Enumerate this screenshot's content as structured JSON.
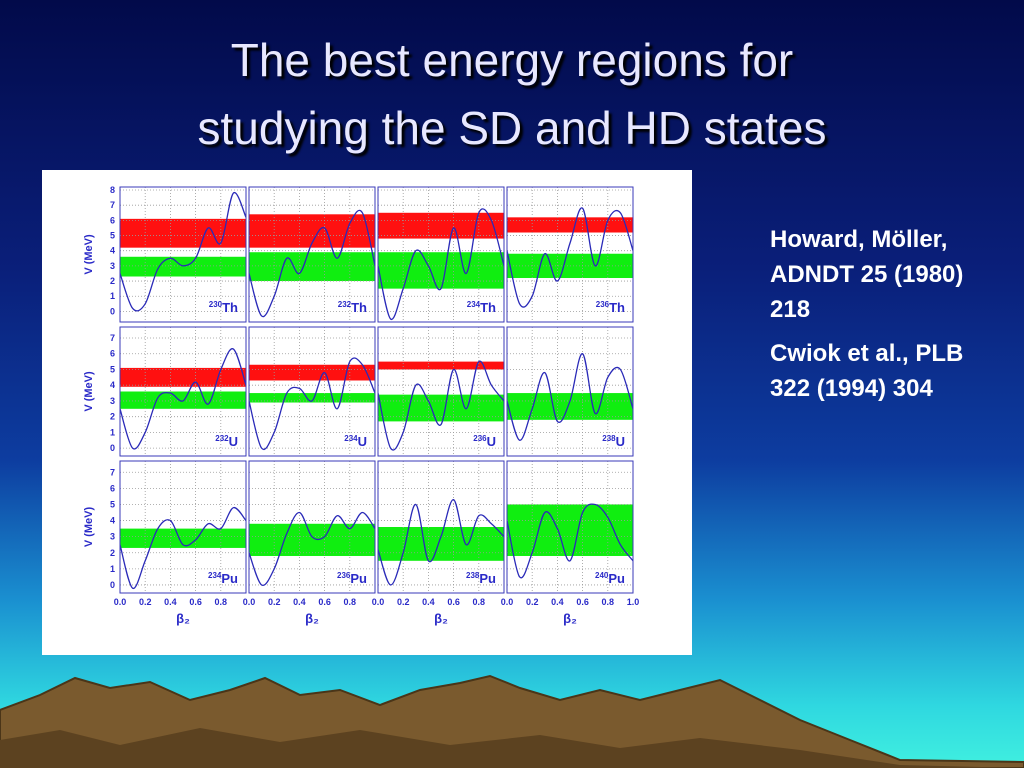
{
  "title": [
    "The best energy regions for",
    "studying the SD and HD states"
  ],
  "notes": [
    "Howard, Möller, ADNDT 25 (1980) 218",
    "Cwiok et al., PLB 322 (1994) 304"
  ],
  "figure": {
    "ylabel": "V (MeV)",
    "xlabel": "β₂",
    "xlim": [
      0,
      1
    ],
    "x": [
      0,
      0.1,
      0.2,
      0.3,
      0.4,
      0.5,
      0.6,
      0.7,
      0.8,
      0.9,
      1.0
    ],
    "columns": [
      {
        "xticks": [
          {
            "value": 0,
            "label": "0.0"
          },
          0.2,
          0.4,
          0.6,
          0.8
        ]
      },
      {
        "xticks": [
          {
            "value": 0,
            "label": "0.0"
          },
          0.2,
          0.4,
          0.6,
          0.8
        ]
      },
      {
        "xticks": [
          {
            "value": 0,
            "label": "0.0"
          },
          0.2,
          0.4,
          0.6,
          0.8
        ]
      },
      {
        "xticks": [
          {
            "value": 0,
            "label": "0.0"
          },
          0.2,
          0.4,
          0.6,
          0.8,
          {
            "value": 1,
            "label": "1.0"
          }
        ]
      }
    ],
    "rows": [
      {
        "ylim": [
          -0.7,
          8.2
        ],
        "yticks": [
          0,
          1,
          2,
          3,
          4,
          5,
          6,
          7,
          8
        ],
        "panels": [
          {
            "mass": "230",
            "element": "Th",
            "red": [
              4.2,
              6.1
            ],
            "green": [
              2.3,
              3.6
            ],
            "values": [
              2.5,
              0.2,
              0.5,
              2.8,
              3.5,
              3.0,
              3.5,
              5.5,
              4.5,
              7.8,
              6.2
            ]
          },
          {
            "mass": "232",
            "element": "Th",
            "red": [
              4.2,
              6.4
            ],
            "green": [
              2.0,
              3.9
            ],
            "values": [
              2.5,
              -0.3,
              1.0,
              3.5,
              2.5,
              4.5,
              5.5,
              3.5,
              5.8,
              6.5,
              3.0
            ]
          },
          {
            "mass": "234",
            "element": "Th",
            "red": [
              4.8,
              6.5
            ],
            "green": [
              1.5,
              3.9
            ],
            "values": [
              3,
              -0.5,
              1.5,
              4,
              3,
              1.5,
              5.5,
              2.5,
              6.5,
              6,
              3
            ]
          },
          {
            "mass": "236",
            "element": "Th",
            "red": [
              5.2,
              6.2
            ],
            "green": [
              2.2,
              3.8
            ],
            "values": [
              4,
              0.5,
              1,
              3.8,
              2,
              4.5,
              6.8,
              3,
              6,
              6.5,
              4
            ]
          }
        ]
      },
      {
        "ylim": [
          -0.5,
          7.7
        ],
        "yticks": [
          0,
          1,
          2,
          3,
          4,
          5,
          6,
          7
        ],
        "panels": [
          {
            "mass": "232",
            "element": "U",
            "red": [
              3.9,
              5.1
            ],
            "green": [
              2.5,
              3.6
            ],
            "values": [
              2.5,
              0,
              1,
              3.2,
              3.5,
              3,
              4.2,
              2.8,
              5,
              6.3,
              4
            ]
          },
          {
            "mass": "234",
            "element": "U",
            "red": [
              4.3,
              5.3
            ],
            "green": [
              2.9,
              3.5
            ],
            "values": [
              3,
              0,
              1,
              3.5,
              3.8,
              3,
              4.8,
              2.5,
              5.5,
              5.3,
              3.5
            ]
          },
          {
            "mass": "236",
            "element": "U",
            "red": [
              5.0,
              5.5
            ],
            "green": [
              1.7,
              3.4
            ],
            "values": [
              3.5,
              0,
              1,
              4,
              3,
              1.5,
              5,
              2.5,
              5.5,
              4,
              3
            ]
          },
          {
            "mass": "238",
            "element": "U",
            "green": [
              1.8,
              3.5
            ],
            "values": [
              3,
              0.5,
              2.5,
              4.8,
              1.7,
              3,
              6,
              2.2,
              4.5,
              5,
              2.5
            ]
          }
        ]
      },
      {
        "ylim": [
          -0.5,
          7.7
        ],
        "yticks": [
          0,
          1,
          2,
          3,
          4,
          5,
          6,
          7
        ],
        "panels": [
          {
            "mass": "234",
            "element": "Pu",
            "green": [
              2.3,
              3.5
            ],
            "values": [
              2.5,
              -0.2,
              1.5,
              3.5,
              4,
              2.5,
              2.8,
              3.8,
              3.5,
              4.8,
              4
            ]
          },
          {
            "mass": "236",
            "element": "Pu",
            "green": [
              1.8,
              3.8
            ],
            "values": [
              2,
              0,
              1,
              3.2,
              4.5,
              3,
              3,
              4.3,
              3.5,
              4.5,
              3.5
            ]
          },
          {
            "mass": "238",
            "element": "Pu",
            "green": [
              1.5,
              3.6
            ],
            "values": [
              2.2,
              0,
              2,
              5,
              1.5,
              3,
              5.3,
              2.5,
              4.3,
              3.8,
              3
            ]
          },
          {
            "mass": "240",
            "element": "Pu",
            "green": [
              1.8,
              5.0
            ],
            "values": [
              4,
              0.5,
              2,
              4.5,
              3.5,
              1.5,
              4.5,
              5,
              4.2,
              2.5,
              1.5
            ]
          }
        ]
      }
    ]
  }
}
